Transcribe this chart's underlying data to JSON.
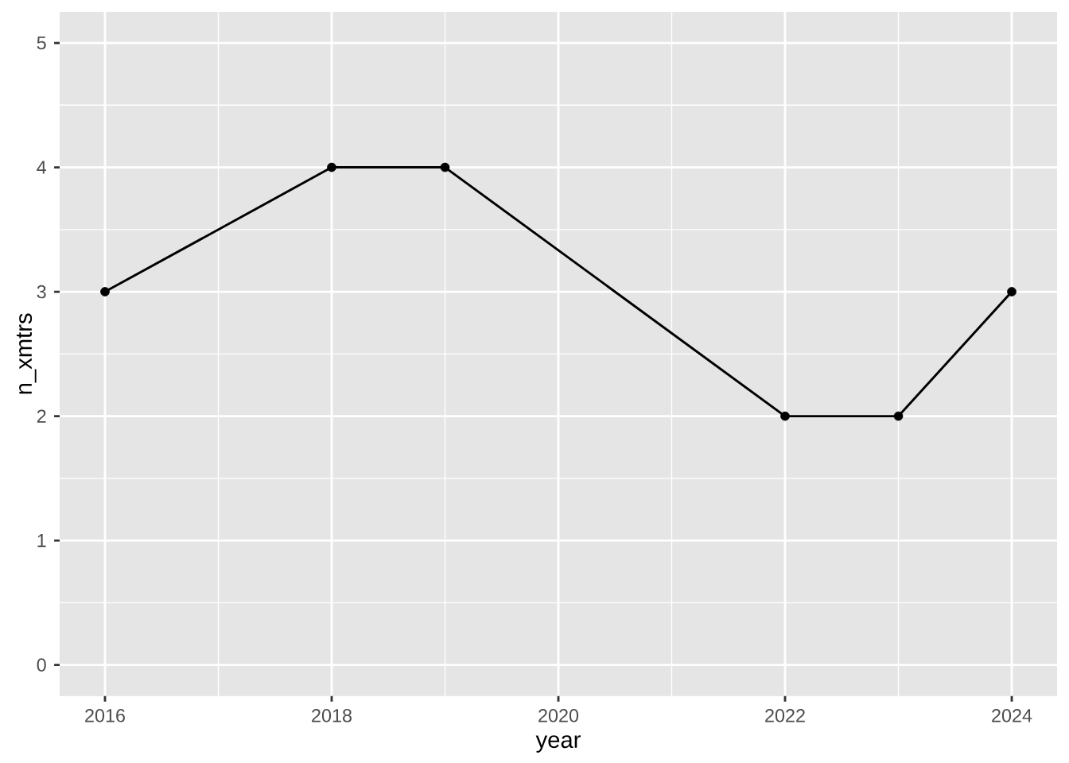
{
  "chart_data": {
    "type": "line",
    "x": [
      2016,
      2018,
      2019,
      2022,
      2023,
      2024
    ],
    "values": [
      3,
      4,
      4,
      2,
      2,
      3
    ],
    "color": "#000000",
    "xlabel": "year",
    "ylabel": "n_xmtrs",
    "xlim": [
      2015.6,
      2024.4
    ],
    "ylim": [
      -0.25,
      5.25
    ],
    "xticks": [
      2016,
      2018,
      2020,
      2022,
      2024
    ],
    "yticks": [
      0,
      1,
      2,
      3,
      4,
      5
    ],
    "grid": true,
    "marker": "circle",
    "line_style": "solid"
  }
}
